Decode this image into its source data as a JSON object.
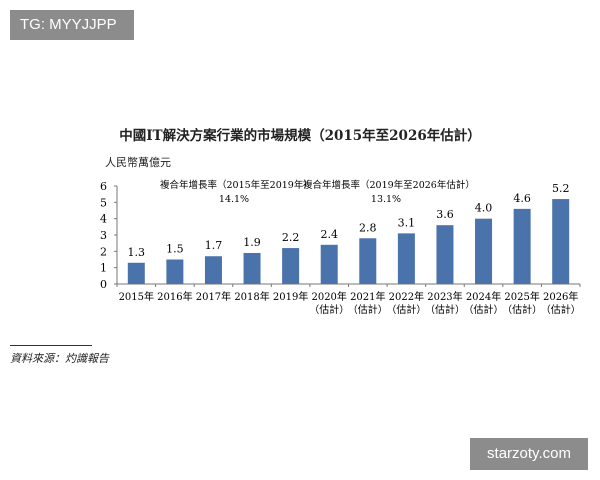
{
  "watermarks": {
    "top_left": "TG: MYYJJPP",
    "bottom_right": "starzoty.com"
  },
  "source": "資料來源：灼識報告",
  "chart_data": {
    "type": "bar",
    "title": "中國IT解決方案行業的市場規模（2015年至2026年估計）",
    "ylabel": "人民幣萬億元",
    "xlabel": "",
    "ylim": [
      0,
      6
    ],
    "yticks": [
      0,
      1,
      2,
      3,
      4,
      5,
      6
    ],
    "grid": false,
    "bar_color": "#4a72ab",
    "categories": [
      [
        "2015年"
      ],
      [
        "2016年"
      ],
      [
        "2017年"
      ],
      [
        "2018年"
      ],
      [
        "2019年"
      ],
      [
        "2020年",
        "（估計）"
      ],
      [
        "2021年",
        "（估計）"
      ],
      [
        "2022年",
        "（估計）"
      ],
      [
        "2023年",
        "（估計）"
      ],
      [
        "2024年",
        "（估計）"
      ],
      [
        "2025年",
        "（估計）"
      ],
      [
        "2026年",
        "（估計）"
      ]
    ],
    "values": [
      1.3,
      1.5,
      1.7,
      1.9,
      2.2,
      2.4,
      2.8,
      3.1,
      3.6,
      4.0,
      4.6,
      5.2
    ],
    "data_labels": [
      "1.3",
      "1.5",
      "1.7",
      "1.9",
      "2.2",
      "2.4",
      "2.8",
      "3.1",
      "3.6",
      "4.0",
      "4.6",
      "5.2"
    ],
    "annotations": [
      {
        "label": "複合年增長率（2015年至2019年）",
        "value": "14.1%"
      },
      {
        "label": "複合年增長率（2019年至2026年估計）",
        "value": "13.1%"
      }
    ]
  }
}
